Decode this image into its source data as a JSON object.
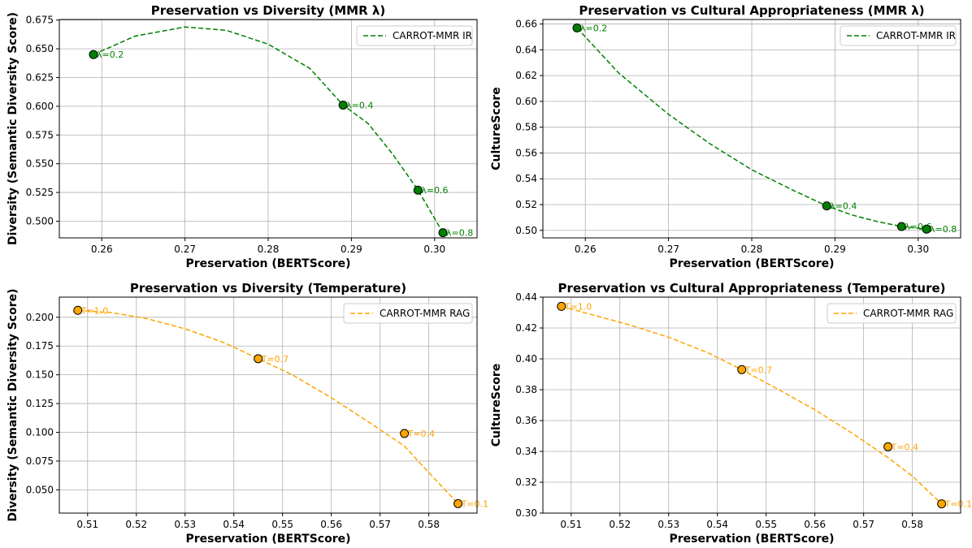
{
  "chart_data": [
    {
      "type": "scatter",
      "title": "Preservation vs Diversity (MMR λ)",
      "xlabel": "Preservation (BERTScore)",
      "ylabel": "Diversity (Semantic Diversity Score)",
      "xlim": [
        0.2549,
        0.3051
      ],
      "ylim": [
        0.4855,
        0.6755
      ],
      "xticks": [
        "0.26",
        "0.27",
        "0.28",
        "0.29",
        "0.30"
      ],
      "yticks": [
        "0.500",
        "0.525",
        "0.550",
        "0.575",
        "0.600",
        "0.625",
        "0.650",
        "0.675"
      ],
      "grid": true,
      "legend": {
        "position": "top-right",
        "entries": [
          "CARROT-MMR IR"
        ]
      },
      "color": "#008000",
      "series": [
        {
          "name": "CARROT-MMR IR",
          "points": [
            {
              "x": 0.259,
              "y": 0.645,
              "label": "λ=0.2"
            },
            {
              "x": 0.289,
              "y": 0.601,
              "label": "λ=0.4"
            },
            {
              "x": 0.298,
              "y": 0.527,
              "label": "λ=0.6"
            },
            {
              "x": 0.301,
              "y": 0.49,
              "label": "λ=0.8"
            }
          ],
          "trend": {
            "x": [
              0.259,
              0.264,
              0.27,
              0.275,
              0.28,
              0.285,
              0.289,
              0.292,
              0.295,
              0.298,
              0.301
            ],
            "y": [
              0.645,
              0.661,
              0.669,
              0.666,
              0.654,
              0.633,
              0.601,
              0.585,
              0.558,
              0.527,
              0.49
            ]
          }
        }
      ]
    },
    {
      "type": "scatter",
      "title": "Preservation vs Cultural Appropriateness (MMR λ)",
      "xlabel": "Preservation (BERTScore)",
      "ylabel": "CultureScore",
      "xlim": [
        0.2549,
        0.3051
      ],
      "ylim": [
        0.4942,
        0.6635
      ],
      "xticks": [
        "0.26",
        "0.27",
        "0.28",
        "0.29",
        "0.30"
      ],
      "yticks": [
        "0.50",
        "0.52",
        "0.54",
        "0.56",
        "0.58",
        "0.60",
        "0.62",
        "0.64",
        "0.66"
      ],
      "grid": true,
      "legend": {
        "position": "top-right",
        "entries": [
          "CARROT-MMR IR"
        ]
      },
      "color": "#008000",
      "series": [
        {
          "name": "CARROT-MMR IR",
          "points": [
            {
              "x": 0.259,
              "y": 0.657,
              "label": "λ=0.2"
            },
            {
              "x": 0.289,
              "y": 0.519,
              "label": "λ=0.4"
            },
            {
              "x": 0.298,
              "y": 0.503,
              "label": "λ=0.6"
            },
            {
              "x": 0.301,
              "y": 0.501,
              "label": "λ=0.8"
            }
          ],
          "trend": {
            "x": [
              0.259,
              0.264,
              0.27,
              0.275,
              0.28,
              0.285,
              0.289,
              0.292,
              0.295,
              0.298,
              0.301
            ],
            "y": [
              0.657,
              0.622,
              0.59,
              0.567,
              0.547,
              0.531,
              0.519,
              0.512,
              0.507,
              0.503,
              0.501
            ]
          }
        }
      ]
    },
    {
      "type": "scatter",
      "title": "Preservation vs Diversity (Temperature)",
      "xlabel": "Preservation (BERTScore)",
      "ylabel": "Diversity (Semantic Diversity Score)",
      "xlim": [
        0.5042,
        0.5899
      ],
      "ylim": [
        0.0298,
        0.2175
      ],
      "xticks": [
        "0.51",
        "0.52",
        "0.53",
        "0.54",
        "0.55",
        "0.56",
        "0.57",
        "0.58"
      ],
      "yticks": [
        "0.050",
        "0.075",
        "0.100",
        "0.125",
        "0.150",
        "0.175",
        "0.200"
      ],
      "grid": true,
      "legend": {
        "position": "top-right",
        "entries": [
          "CARROT-MMR RAG"
        ]
      },
      "color": "#FFA500",
      "series": [
        {
          "name": "CARROT-MMR RAG",
          "points": [
            {
              "x": 0.508,
              "y": 0.206,
              "label": "T=1.0"
            },
            {
              "x": 0.545,
              "y": 0.164,
              "label": "T=0.7"
            },
            {
              "x": 0.575,
              "y": 0.099,
              "label": "T=0.4"
            },
            {
              "x": 0.586,
              "y": 0.038,
              "label": "T=0.1"
            }
          ],
          "trend": {
            "x": [
              0.508,
              0.515,
              0.522,
              0.53,
              0.538,
              0.545,
              0.552,
              0.56,
              0.568,
              0.575,
              0.58,
              0.586
            ],
            "y": [
              0.206,
              0.204,
              0.199,
              0.19,
              0.178,
              0.164,
              0.15,
              0.13,
              0.108,
              0.088,
              0.065,
              0.038
            ]
          }
        }
      ]
    },
    {
      "type": "scatter",
      "title": "Preservation vs Cultural Appropriateness (Temperature)",
      "xlabel": "Preservation (BERTScore)",
      "ylabel": "CultureScore",
      "xlim": [
        0.5042,
        0.5899
      ],
      "ylim": [
        0.3,
        0.44
      ],
      "xticks": [
        "0.51",
        "0.52",
        "0.53",
        "0.54",
        "0.55",
        "0.56",
        "0.57",
        "0.58"
      ],
      "yticks": [
        "0.30",
        "0.32",
        "0.34",
        "0.36",
        "0.38",
        "0.40",
        "0.42",
        "0.44"
      ],
      "grid": true,
      "legend": {
        "position": "top-right",
        "entries": [
          "CARROT-MMR RAG"
        ]
      },
      "color": "#FFA500",
      "series": [
        {
          "name": "CARROT-MMR RAG",
          "points": [
            {
              "x": 0.508,
              "y": 0.434,
              "label": "T=1.0"
            },
            {
              "x": 0.545,
              "y": 0.393,
              "label": "T=0.7"
            },
            {
              "x": 0.575,
              "y": 0.343,
              "label": "T=0.4"
            },
            {
              "x": 0.586,
              "y": 0.306,
              "label": "T=0.1"
            }
          ],
          "trend": {
            "x": [
              0.508,
              0.515,
              0.522,
              0.53,
              0.538,
              0.545,
              0.552,
              0.56,
              0.568,
              0.575,
              0.58,
              0.586
            ],
            "y": [
              0.434,
              0.428,
              0.422,
              0.414,
              0.404,
              0.393,
              0.381,
              0.367,
              0.351,
              0.336,
              0.324,
              0.306
            ]
          }
        }
      ]
    }
  ]
}
